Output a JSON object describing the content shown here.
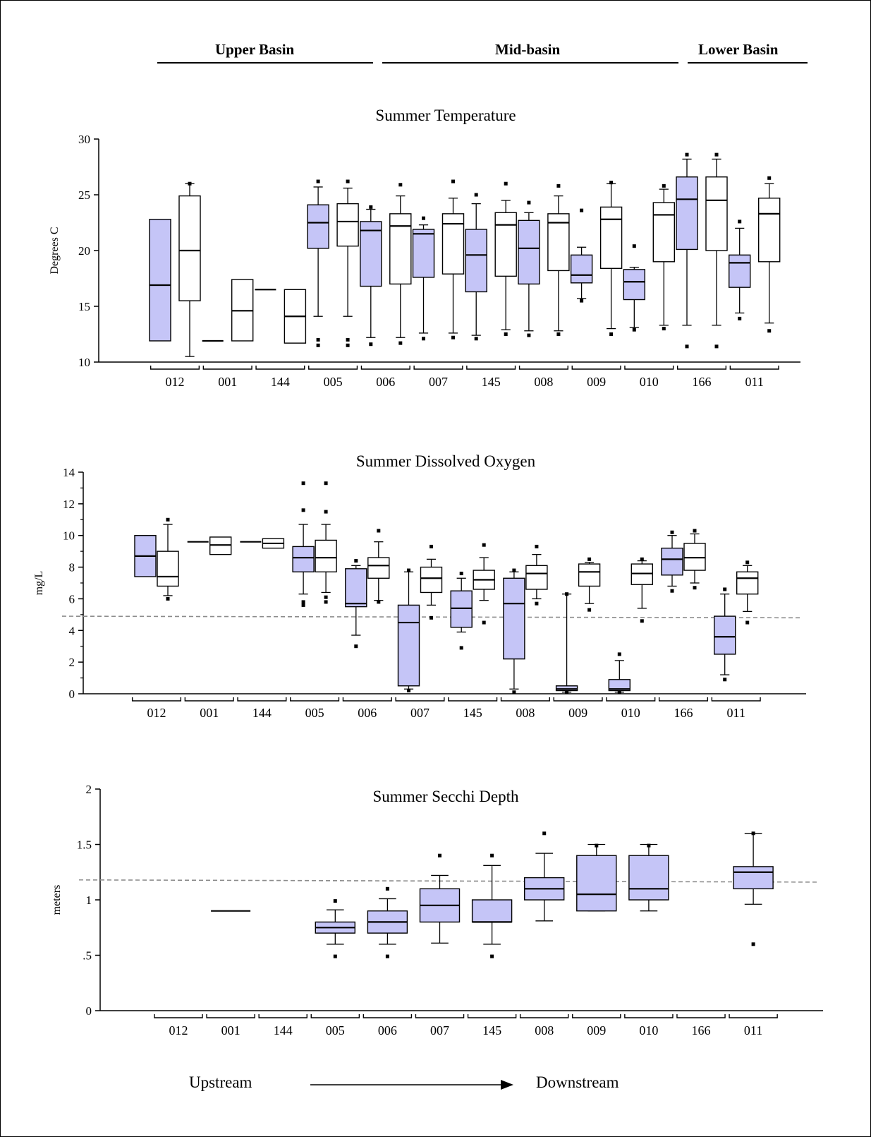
{
  "header": {
    "basins": [
      {
        "label": "Upper Basin"
      },
      {
        "label": "Mid-basin"
      },
      {
        "label": "Lower Basin"
      }
    ]
  },
  "footer": {
    "upstream": "Upstream",
    "downstream": "Downstream"
  },
  "colors": {
    "lake_fill": "#c5c5f7",
    "river_fill": "#ffffff",
    "reference_line": "#8c8c8c"
  },
  "chart_data": [
    {
      "type": "box",
      "title": "Summer Temperature",
      "ylabel": "Degrees C",
      "ylim": [
        10,
        30
      ],
      "yticks": [
        {
          "v": 10,
          "label": "10"
        },
        {
          "v": 15,
          "label": "15"
        },
        {
          "v": 20,
          "label": "20"
        },
        {
          "v": 25,
          "label": "25"
        },
        {
          "v": 30,
          "label": "30"
        }
      ],
      "minor_ticks": false,
      "categories": [
        "012",
        "001",
        "144",
        "005",
        "006",
        "007",
        "145",
        "008",
        "009",
        "010",
        "166",
        "011"
      ],
      "series": [
        {
          "key": "lake",
          "boxes": [
            {
              "cat": "012",
              "q1": 11.9,
              "med": 16.9,
              "q3": 22.8
            },
            {
              "cat": "001",
              "q1": 11.9,
              "med": 11.9,
              "q3": 11.9
            },
            {
              "cat": "144",
              "q1": 16.5,
              "med": 16.5,
              "q3": 16.5
            },
            {
              "cat": "005",
              "q1": 20.2,
              "med": 22.5,
              "q3": 24.1,
              "wlo": 14.1,
              "whi": 25.7,
              "out": [
                26.2,
                12.0,
                11.5
              ]
            },
            {
              "cat": "006",
              "q1": 16.8,
              "med": 21.8,
              "q3": 22.6,
              "wlo": 12.2,
              "whi": 23.7,
              "out": [
                23.9,
                11.6
              ]
            },
            {
              "cat": "007",
              "q1": 17.6,
              "med": 21.5,
              "q3": 21.9,
              "wlo": 12.6,
              "whi": 22.3,
              "out": [
                22.9,
                12.1
              ]
            },
            {
              "cat": "145",
              "q1": 16.3,
              "med": 19.6,
              "q3": 21.9,
              "wlo": 12.4,
              "whi": 24.2,
              "out": [
                25.0,
                12.1
              ]
            },
            {
              "cat": "008",
              "q1": 17.0,
              "med": 20.2,
              "q3": 22.7,
              "wlo": 12.8,
              "whi": 23.4,
              "out": [
                24.3,
                12.4
              ]
            },
            {
              "cat": "009",
              "q1": 17.1,
              "med": 17.8,
              "q3": 19.6,
              "wlo": 15.7,
              "whi": 20.3,
              "out": [
                23.6,
                15.5
              ]
            },
            {
              "cat": "010",
              "q1": 15.6,
              "med": 17.2,
              "q3": 18.3,
              "wlo": 13.1,
              "whi": 18.5,
              "out": [
                20.4,
                12.9
              ]
            },
            {
              "cat": "166",
              "q1": 20.1,
              "med": 24.6,
              "q3": 26.6,
              "wlo": 13.3,
              "whi": 28.2,
              "out": [
                28.6,
                11.4
              ]
            },
            {
              "cat": "011",
              "q1": 16.7,
              "med": 18.9,
              "q3": 19.6,
              "wlo": 14.4,
              "whi": 22.0,
              "out": [
                22.6,
                13.9
              ]
            }
          ]
        },
        {
          "key": "river",
          "boxes": [
            {
              "cat": "012",
              "q1": 15.5,
              "med": 20.0,
              "q3": 24.9,
              "wlo": 10.5,
              "whi": 26.0,
              "out": [
                26.0
              ]
            },
            {
              "cat": "001",
              "q1": 11.9,
              "med": 14.6,
              "q3": 17.4
            },
            {
              "cat": "144",
              "q1": 11.7,
              "med": 14.1,
              "q3": 16.5
            },
            {
              "cat": "005",
              "q1": 20.4,
              "med": 22.6,
              "q3": 24.2,
              "wlo": 14.1,
              "whi": 25.6,
              "out": [
                26.2,
                12.0,
                11.5
              ]
            },
            {
              "cat": "006",
              "q1": 17.0,
              "med": 22.2,
              "q3": 23.3,
              "wlo": 12.2,
              "whi": 24.9,
              "out": [
                25.9,
                11.7
              ]
            },
            {
              "cat": "007",
              "q1": 17.9,
              "med": 22.4,
              "q3": 23.3,
              "wlo": 12.6,
              "whi": 24.7,
              "out": [
                26.2,
                12.2
              ]
            },
            {
              "cat": "145",
              "q1": 17.7,
              "med": 22.3,
              "q3": 23.4,
              "wlo": 12.9,
              "whi": 24.5,
              "out": [
                26.0,
                12.5
              ]
            },
            {
              "cat": "008",
              "q1": 18.2,
              "med": 22.5,
              "q3": 23.3,
              "wlo": 12.8,
              "whi": 24.9,
              "out": [
                25.8,
                12.5
              ]
            },
            {
              "cat": "009",
              "q1": 18.4,
              "med": 22.8,
              "q3": 23.9,
              "wlo": 13.0,
              "whi": 26.0,
              "out": [
                26.1,
                12.5
              ]
            },
            {
              "cat": "010",
              "q1": 19.0,
              "med": 23.2,
              "q3": 24.3,
              "wlo": 13.3,
              "whi": 25.5,
              "out": [
                25.8,
                13.0
              ]
            },
            {
              "cat": "166",
              "q1": 20.0,
              "med": 24.5,
              "q3": 26.6,
              "wlo": 13.3,
              "whi": 28.2,
              "out": [
                28.6,
                11.4
              ]
            },
            {
              "cat": "011",
              "q1": 19.0,
              "med": 23.3,
              "q3": 24.7,
              "wlo": 13.5,
              "whi": 26.0,
              "out": [
                26.5,
                12.8
              ]
            }
          ]
        }
      ]
    },
    {
      "type": "box",
      "title": "Summer Dissolved Oxygen",
      "ylabel": "mg/L",
      "ylim": [
        0,
        14
      ],
      "yticks": [
        {
          "v": 0,
          "label": "0"
        },
        {
          "v": 2,
          "label": "2"
        },
        {
          "v": 4,
          "label": "4"
        },
        {
          "v": 6,
          "label": "6"
        },
        {
          "v": 8,
          "label": "8"
        },
        {
          "v": 10,
          "label": "10"
        },
        {
          "v": 12,
          "label": "12"
        },
        {
          "v": 14,
          "label": "14"
        }
      ],
      "minor_ticks": true,
      "reference_line": [
        4.9,
        4.8
      ],
      "categories": [
        "012",
        "001",
        "144",
        "005",
        "006",
        "007",
        "145",
        "008",
        "009",
        "010",
        "166",
        "011"
      ],
      "series": [
        {
          "key": "lake",
          "boxes": [
            {
              "cat": "012",
              "q1": 7.4,
              "med": 8.7,
              "q3": 10.0
            },
            {
              "cat": "001",
              "q1": 9.6,
              "med": 9.6,
              "q3": 9.6
            },
            {
              "cat": "144",
              "q1": 9.6,
              "med": 9.6,
              "q3": 9.6
            },
            {
              "cat": "005",
              "q1": 7.7,
              "med": 8.6,
              "q3": 9.3,
              "wlo": 6.3,
              "whi": 10.7,
              "out": [
                13.3,
                11.6,
                5.8,
                5.6
              ]
            },
            {
              "cat": "006",
              "q1": 5.5,
              "med": 5.7,
              "q3": 7.9,
              "wlo": 3.7,
              "whi": 8.1,
              "out": [
                8.4,
                3.0
              ]
            },
            {
              "cat": "007",
              "q1": 0.5,
              "med": 4.5,
              "q3": 5.6,
              "wlo": 0.3,
              "whi": 7.7,
              "out": [
                7.8,
                0.2
              ]
            },
            {
              "cat": "145",
              "q1": 4.2,
              "med": 5.4,
              "q3": 6.5,
              "wlo": 3.9,
              "whi": 7.3,
              "out": [
                7.6,
                2.9
              ]
            },
            {
              "cat": "008",
              "q1": 2.2,
              "med": 5.7,
              "q3": 7.3,
              "wlo": 0.3,
              "whi": 7.7,
              "out": [
                7.8,
                0.1
              ]
            },
            {
              "cat": "009",
              "q1": 0.2,
              "med": 0.3,
              "q3": 0.5,
              "wlo": 0.1,
              "whi": 6.3,
              "out": [
                6.3,
                0.1
              ]
            },
            {
              "cat": "010",
              "q1": 0.2,
              "med": 0.3,
              "q3": 0.9,
              "wlo": 0.1,
              "whi": 2.1,
              "out": [
                2.5,
                0.1
              ]
            },
            {
              "cat": "166",
              "q1": 7.5,
              "med": 8.5,
              "q3": 9.2,
              "wlo": 6.8,
              "whi": 10.0,
              "out": [
                10.2,
                6.5
              ]
            },
            {
              "cat": "011",
              "q1": 2.5,
              "med": 3.6,
              "q3": 4.9,
              "wlo": 1.2,
              "whi": 6.3,
              "out": [
                6.6,
                0.9
              ]
            }
          ]
        },
        {
          "key": "river",
          "boxes": [
            {
              "cat": "012",
              "q1": 6.8,
              "med": 7.4,
              "q3": 9.0,
              "wlo": 6.2,
              "whi": 10.7,
              "out": [
                11.0,
                6.0
              ]
            },
            {
              "cat": "001",
              "q1": 8.8,
              "med": 9.4,
              "q3": 9.9
            },
            {
              "cat": "144",
              "q1": 9.2,
              "med": 9.5,
              "q3": 9.8
            },
            {
              "cat": "005",
              "q1": 7.7,
              "med": 8.6,
              "q3": 9.7,
              "wlo": 6.4,
              "whi": 10.7,
              "out": [
                13.3,
                11.5,
                6.1,
                5.8
              ]
            },
            {
              "cat": "006",
              "q1": 7.3,
              "med": 8.1,
              "q3": 8.6,
              "wlo": 5.9,
              "whi": 9.6,
              "out": [
                10.3,
                5.8
              ]
            },
            {
              "cat": "007",
              "q1": 6.4,
              "med": 7.3,
              "q3": 8.0,
              "wlo": 5.6,
              "whi": 8.5,
              "out": [
                9.3,
                4.8
              ]
            },
            {
              "cat": "145",
              "q1": 6.6,
              "med": 7.2,
              "q3": 7.8,
              "wlo": 5.9,
              "whi": 8.6,
              "out": [
                9.4,
                4.5
              ]
            },
            {
              "cat": "008",
              "q1": 6.6,
              "med": 7.6,
              "q3": 8.1,
              "wlo": 6.0,
              "whi": 8.8,
              "out": [
                9.3,
                5.7
              ]
            },
            {
              "cat": "009",
              "q1": 6.8,
              "med": 7.7,
              "q3": 8.2,
              "wlo": 5.7,
              "whi": 8.3,
              "out": [
                8.5,
                5.3
              ]
            },
            {
              "cat": "010",
              "q1": 6.9,
              "med": 7.6,
              "q3": 8.2,
              "wlo": 5.4,
              "whi": 8.4,
              "out": [
                8.5,
                4.6
              ]
            },
            {
              "cat": "166",
              "q1": 7.8,
              "med": 8.6,
              "q3": 9.5,
              "wlo": 7.0,
              "whi": 10.1,
              "out": [
                10.3,
                6.7
              ]
            },
            {
              "cat": "011",
              "q1": 6.3,
              "med": 7.3,
              "q3": 7.7,
              "wlo": 5.2,
              "whi": 8.1,
              "out": [
                8.3,
                4.5
              ]
            }
          ]
        }
      ]
    },
    {
      "type": "box",
      "title": "Summer Secchi Depth",
      "ylabel": "meters",
      "ylim": [
        0,
        2
      ],
      "yticks": [
        {
          "v": 0,
          "label": "0"
        },
        {
          "v": 0.5,
          "label": ".5"
        },
        {
          "v": 1,
          "label": "1"
        },
        {
          "v": 1.5,
          "label": "1.5"
        },
        {
          "v": 2,
          "label": "2"
        }
      ],
      "minor_ticks": false,
      "reference_line": [
        1.18,
        1.16
      ],
      "categories": [
        "012",
        "001",
        "144",
        "005",
        "006",
        "007",
        "145",
        "008",
        "009",
        "010",
        "166",
        "011"
      ],
      "series": [
        {
          "key": "lake",
          "boxes": [
            {
              "cat": "001",
              "q1": 0.9,
              "med": 0.9,
              "q3": 0.9
            },
            {
              "cat": "005",
              "q1": 0.7,
              "med": 0.75,
              "q3": 0.8,
              "wlo": 0.6,
              "whi": 0.91,
              "out": [
                0.99,
                0.49
              ]
            },
            {
              "cat": "006",
              "q1": 0.7,
              "med": 0.8,
              "q3": 0.9,
              "wlo": 0.6,
              "whi": 1.01,
              "out": [
                1.1,
                0.49
              ]
            },
            {
              "cat": "007",
              "q1": 0.8,
              "med": 0.95,
              "q3": 1.1,
              "wlo": 0.61,
              "whi": 1.22,
              "out": [
                1.4
              ]
            },
            {
              "cat": "145",
              "q1": 0.8,
              "med": 0.8,
              "q3": 1.0,
              "wlo": 0.6,
              "whi": 1.31,
              "out": [
                1.4,
                0.49
              ]
            },
            {
              "cat": "008",
              "q1": 1.0,
              "med": 1.1,
              "q3": 1.2,
              "wlo": 0.81,
              "whi": 1.42,
              "out": [
                1.6
              ]
            },
            {
              "cat": "009",
              "q1": 0.9,
              "med": 1.05,
              "q3": 1.4,
              "wlo": 0.9,
              "whi": 1.5,
              "out": [
                1.49
              ]
            },
            {
              "cat": "010",
              "q1": 1.0,
              "med": 1.1,
              "q3": 1.4,
              "wlo": 0.9,
              "whi": 1.5,
              "out": [
                1.49
              ]
            },
            {
              "cat": "011",
              "q1": 1.1,
              "med": 1.25,
              "q3": 1.3,
              "wlo": 0.96,
              "whi": 1.6,
              "out": [
                1.6,
                0.6
              ]
            }
          ]
        }
      ]
    }
  ]
}
